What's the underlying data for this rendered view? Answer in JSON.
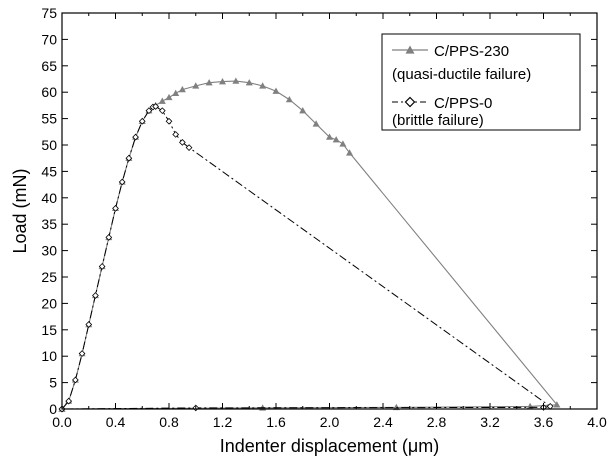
{
  "chart_data": {
    "type": "line",
    "title": "",
    "xlabel": "Indenter displacement (μm)",
    "ylabel": "Load (mN)",
    "xlim": [
      0.0,
      4.0
    ],
    "ylim": [
      0,
      75
    ],
    "xticks": [
      "0.0",
      "0.4",
      "0.8",
      "1.2",
      "1.6",
      "2.0",
      "2.4",
      "2.8",
      "3.2",
      "3.6",
      "4.0"
    ],
    "yticks": [
      "0",
      "5",
      "10",
      "15",
      "20",
      "25",
      "30",
      "35",
      "40",
      "45",
      "50",
      "55",
      "60",
      "65",
      "70",
      "75"
    ],
    "grid": false,
    "legend_position": "top-right",
    "series": [
      {
        "name": "C/PPS-230",
        "legend_note": "(quasi-ductile failure)",
        "color": "#808080",
        "marker": "triangle",
        "line_style": "solid",
        "points": [
          [
            0.0,
            0.0
          ],
          [
            0.05,
            1.5
          ],
          [
            0.1,
            5.5
          ],
          [
            0.15,
            10.5
          ],
          [
            0.2,
            16.0
          ],
          [
            0.25,
            21.5
          ],
          [
            0.3,
            27.0
          ],
          [
            0.35,
            32.5
          ],
          [
            0.4,
            38.0
          ],
          [
            0.45,
            43.0
          ],
          [
            0.5,
            47.5
          ],
          [
            0.55,
            51.5
          ],
          [
            0.6,
            54.5
          ],
          [
            0.65,
            56.5
          ],
          [
            0.7,
            57.5
          ],
          [
            0.75,
            58.3
          ],
          [
            0.8,
            59.0
          ],
          [
            0.85,
            59.8
          ],
          [
            0.9,
            60.5
          ],
          [
            1.0,
            61.2
          ],
          [
            1.1,
            61.8
          ],
          [
            1.2,
            62.0
          ],
          [
            1.3,
            62.1
          ],
          [
            1.4,
            61.8
          ],
          [
            1.5,
            61.2
          ],
          [
            1.6,
            60.2
          ],
          [
            1.7,
            58.6
          ],
          [
            1.8,
            56.5
          ],
          [
            1.9,
            54.0
          ],
          [
            2.0,
            51.5
          ],
          [
            2.05,
            51.0
          ],
          [
            2.1,
            50.2
          ],
          [
            2.15,
            48.5
          ],
          [
            3.7,
            0.8
          ],
          [
            3.5,
            0.5
          ],
          [
            2.5,
            0.3
          ],
          [
            1.5,
            0.2
          ],
          [
            0.0,
            0.0
          ]
        ]
      },
      {
        "name": "C/PPS-0",
        "legend_note": "(brittle failure)",
        "color": "#000000",
        "marker": "diamond-open",
        "line_style": "dash-dot",
        "points": [
          [
            0.0,
            0.0
          ],
          [
            0.05,
            1.5
          ],
          [
            0.1,
            5.5
          ],
          [
            0.15,
            10.5
          ],
          [
            0.2,
            16.0
          ],
          [
            0.25,
            21.5
          ],
          [
            0.3,
            27.0
          ],
          [
            0.35,
            32.5
          ],
          [
            0.4,
            38.0
          ],
          [
            0.45,
            43.0
          ],
          [
            0.5,
            47.5
          ],
          [
            0.55,
            51.5
          ],
          [
            0.6,
            54.5
          ],
          [
            0.65,
            56.5
          ],
          [
            0.68,
            57.2
          ],
          [
            0.7,
            57.3
          ],
          [
            0.75,
            56.5
          ],
          [
            0.8,
            54.5
          ],
          [
            0.85,
            52.0
          ],
          [
            0.9,
            50.5
          ],
          [
            0.95,
            49.5
          ],
          [
            3.65,
            0.5
          ],
          [
            3.6,
            0.3
          ],
          [
            1.0,
            0.2
          ],
          [
            0.0,
            0.0
          ]
        ]
      }
    ]
  }
}
